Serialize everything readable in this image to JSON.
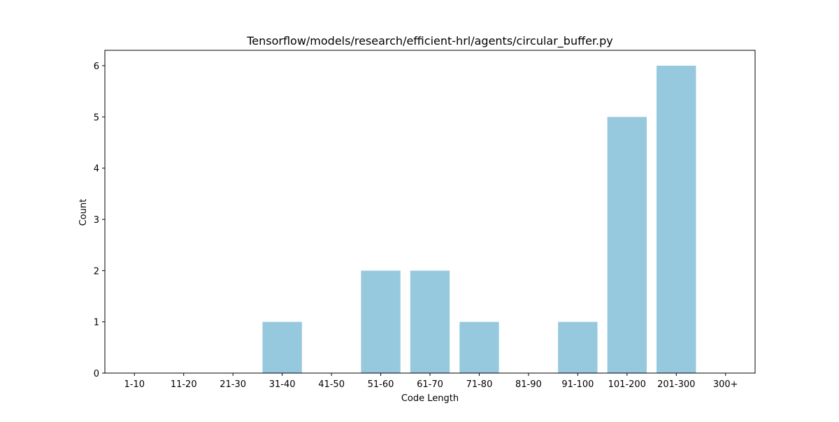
{
  "chart_data": {
    "type": "bar",
    "title": "Tensorflow/models/research/efficient-hrl/agents/circular_buffer.py",
    "xlabel": "Code Length",
    "ylabel": "Count",
    "categories": [
      "1-10",
      "11-20",
      "21-30",
      "31-40",
      "41-50",
      "51-60",
      "61-70",
      "71-80",
      "81-90",
      "91-100",
      "101-200",
      "201-300",
      "300+"
    ],
    "values": [
      0,
      0,
      0,
      1,
      0,
      2,
      2,
      1,
      0,
      1,
      5,
      6,
      0
    ],
    "ylim": [
      0,
      6.3
    ],
    "yticks": [
      0,
      1,
      2,
      3,
      4,
      5,
      6
    ],
    "grid": false,
    "legend": "none",
    "colors": {
      "bar": "#96c9de",
      "axis": "#000000",
      "background": "#ffffff"
    }
  }
}
